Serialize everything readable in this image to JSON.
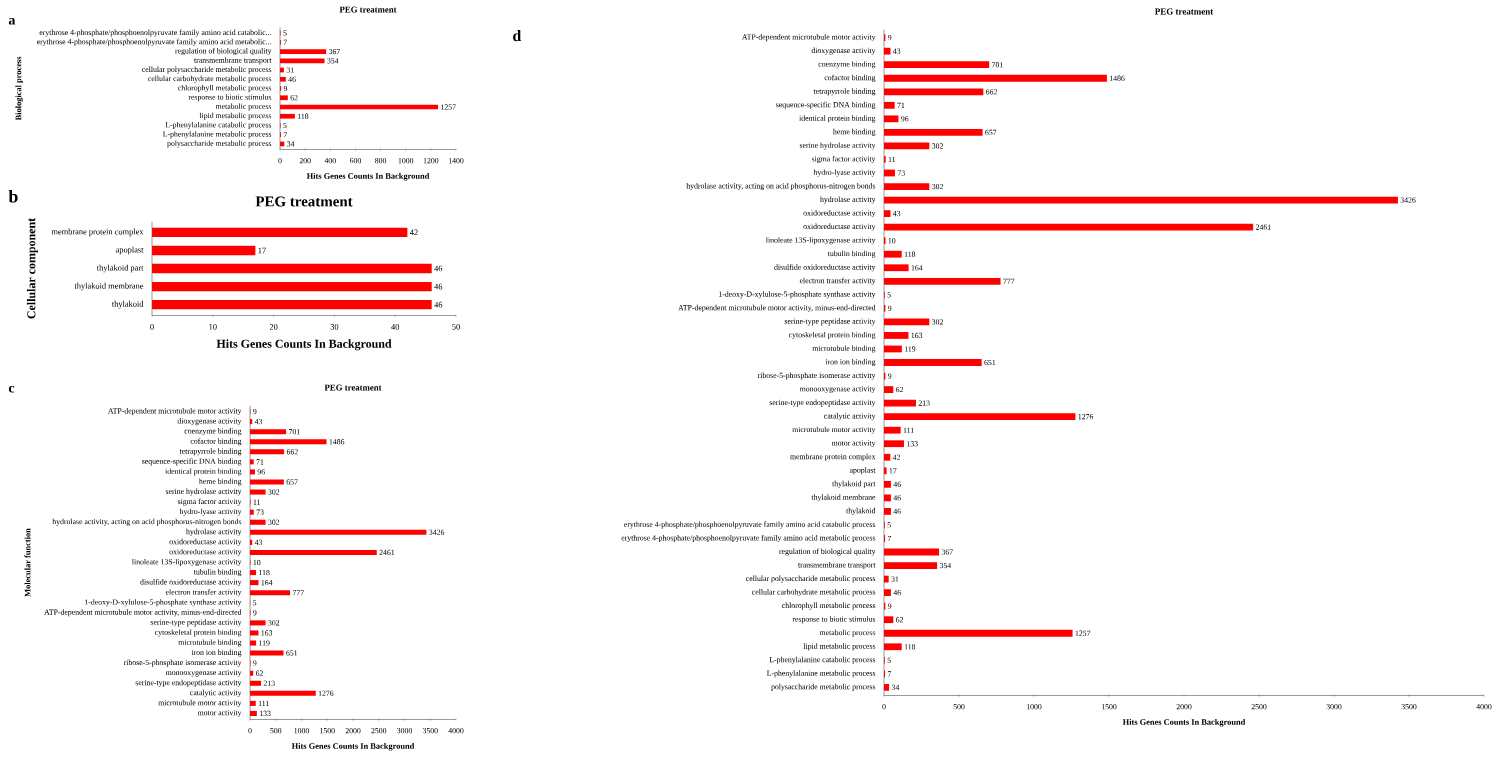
{
  "chart_data": [
    {
      "type": "bar",
      "orientation": "horizontal",
      "title": "PEG treatment",
      "ylabel": "Biological process",
      "xlabel": "Hits Genes Counts In Background",
      "annotations": [
        "a"
      ],
      "categories": [
        "erythrose 4-phosphate/phosphoenolpyruvate family amino acid catabolic...",
        "erythrose 4-phosphate/phosphoenolpyruvate family amino acid metabolic...",
        "regulation of biological quality",
        "transmembrane transport",
        "cellular polysaccharide metabolic process",
        "cellular carbohydrate metabolic process",
        "chlorophyll metabolic process",
        "response to biotic stimulus",
        "metabolic process",
        "lipid metabolic process",
        "L-phenylalanine catabolic process",
        "L-phenylalanine metabolic process",
        "polysaccharide metabolic process"
      ],
      "values": [
        5,
        7,
        367,
        354,
        31,
        46,
        9,
        62,
        1257,
        118,
        5,
        7,
        34
      ],
      "color": "#ff0000",
      "data_labels": true,
      "xlim": [
        0,
        1400
      ],
      "xticks": [
        0,
        200,
        400,
        600,
        800,
        1000,
        1200,
        1400
      ]
    },
    {
      "type": "bar",
      "orientation": "horizontal",
      "title": "PEG treatment",
      "ylabel": "Cellular component",
      "xlabel": "Hits Genes Counts In Background",
      "annotations": [
        "b"
      ],
      "categories": [
        "membrane protein complex",
        "apoplast",
        "thylakoid part",
        "thylakoid membrane",
        "thylakoid"
      ],
      "values": [
        42,
        17,
        46,
        46,
        46
      ],
      "color": "#ff0000",
      "data_labels": true,
      "xlim": [
        0,
        50
      ],
      "xticks": [
        0,
        10,
        20,
        30,
        40,
        50
      ]
    },
    {
      "type": "bar",
      "orientation": "horizontal",
      "title": "PEG treatment",
      "ylabel": "Molecular function",
      "xlabel": "Hits Genes Counts In Background",
      "annotations": [
        "c"
      ],
      "categories": [
        "ATP-dependent microtubule motor activity",
        "dioxygenase activity",
        "coenzyme binding",
        "cofactor binding",
        "tetrapyrrole binding",
        "sequence-specific DNA binding",
        "identical protein binding",
        "heme binding",
        "serine hydrolase activity",
        "sigma factor activity",
        "hydro-lyase activity",
        "hydrolase activity, acting on acid phosphorus-nitrogen bonds",
        "hydrolase activity",
        "oxidoreductase activity",
        "oxidoreductase activity",
        "linoleate 13S-lipoxygenase activity",
        "tubulin binding",
        "disulfide oxidoreductase activity",
        "electron transfer activity",
        "1-deoxy-D-xylulose-5-phosphate synthase activity",
        "ATP-dependent microtubule motor activity, minus-end-directed",
        "serine-type peptidase activity",
        "cytoskeletal protein binding",
        "microtubule binding",
        "iron ion binding",
        "ribose-5-phosphate isomerase activity",
        "monooxygenase activity",
        "serine-type endopeptidase activity",
        "catalytic activity",
        "microtubule motor activity",
        "motor activity"
      ],
      "values": [
        9,
        43,
        701,
        1486,
        662,
        71,
        96,
        657,
        302,
        11,
        73,
        302,
        3426,
        43,
        2461,
        10,
        118,
        164,
        777,
        5,
        9,
        302,
        163,
        119,
        651,
        9,
        62,
        213,
        1276,
        111,
        133
      ],
      "color": "#ff0000",
      "data_labels": true,
      "xlim": [
        0,
        4000
      ],
      "xticks": [
        0,
        500,
        1000,
        1500,
        2000,
        2500,
        3000,
        3500,
        4000
      ]
    },
    {
      "type": "bar",
      "orientation": "horizontal",
      "title": "PEG treatment",
      "xlabel": "Hits Genes Counts In Background",
      "annotations": [
        "d"
      ],
      "categories": [
        "ATP-dependent microtubule motor activity",
        "dioxygenase activity",
        "coenzyme binding",
        "cofactor binding",
        "tetrapyrrole binding",
        "sequence-specific DNA binding",
        "identical protein binding",
        "heme binding",
        "serine hydrolase activity",
        "sigma factor activity",
        "hydro-lyase activity",
        "hydrolase activity, acting on acid phosphorus-nitrogen bonds",
        "hydrolase activity",
        "oxidoreductase activity",
        "oxidoreductase activity",
        "linoleate 13S-lipoxygenase activity",
        "tubulin binding",
        "disulfide oxidoreductase activity",
        "electron transfer activity",
        "1-deoxy-D-xylulose-5-phosphate synthase activity",
        "ATP-dependent microtubule motor activity, minus-end-directed",
        "serine-type peptidase activity",
        "cytoskeletal protein binding",
        "microtubule binding",
        "iron ion binding",
        "ribose-5-phosphate isomerase activity",
        "monooxygenase activity",
        "serine-type endopeptidase activity",
        "catalytic activity",
        "microtubule motor activity",
        "motor activity",
        "membrane protein complex",
        "apoplast",
        "thylakoid part",
        "thylakoid membrane",
        "thylakoid",
        "erythrose 4-phosphate/phosphoenolpyruvate family amino acid catabolic process",
        "erythrose 4-phosphate/phosphoenolpyruvate family amino acid metabolic process",
        "regulation of biological quality",
        "transmembrane transport",
        "cellular polysaccharide metabolic process",
        "cellular carbohydrate metabolic process",
        "chlorophyll metabolic process",
        "response to biotic stimulus",
        "metabolic process",
        "lipid metabolic process",
        "L-phenylalanine catabolic process",
        "L-phenylalanine metabolic process",
        "polysaccharide metabolic process"
      ],
      "values": [
        9,
        43,
        701,
        1486,
        662,
        71,
        96,
        657,
        302,
        11,
        73,
        302,
        3426,
        43,
        2461,
        10,
        118,
        164,
        777,
        5,
        9,
        302,
        163,
        119,
        651,
        9,
        62,
        213,
        1276,
        111,
        133,
        42,
        17,
        46,
        46,
        46,
        5,
        7,
        367,
        354,
        31,
        46,
        9,
        62,
        1257,
        118,
        5,
        7,
        34
      ],
      "color": "#ff0000",
      "data_labels": true,
      "xlim": [
        0,
        4000
      ],
      "xticks": [
        0,
        500,
        1000,
        1500,
        2000,
        2500,
        3000,
        3500,
        4000
      ]
    }
  ]
}
